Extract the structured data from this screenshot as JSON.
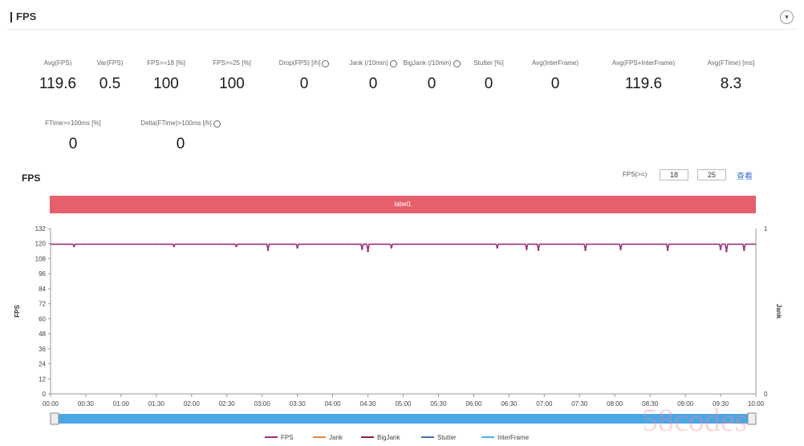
{
  "header": {
    "title": "FPS",
    "collapse_icon": "chevron-down-icon"
  },
  "metrics_row1": [
    {
      "label": "Avg(FPS)",
      "value": "119.6",
      "info": false
    },
    {
      "label": "Var(FPS)",
      "value": "0.5",
      "info": false
    },
    {
      "label": "FPS>=18 [%]",
      "value": "100",
      "info": false
    },
    {
      "label": "FPS>=25 [%]",
      "value": "100",
      "info": false
    },
    {
      "label": "Drop(FPS) [/h]",
      "value": "0",
      "info": true
    },
    {
      "label": "Jank (/10min)",
      "value": "0",
      "info": true
    },
    {
      "label": "BigJank (/10min)",
      "value": "0",
      "info": true
    },
    {
      "label": "Stutter [%]",
      "value": "0",
      "info": false
    },
    {
      "label": "Avg(InterFrame)",
      "value": "0",
      "info": false
    },
    {
      "label": "Avg(FPS+InterFrame)",
      "value": "119.6",
      "info": false
    },
    {
      "label": "Avg(FTime) [ms]",
      "value": "8.3",
      "info": false
    }
  ],
  "metrics_row2": [
    {
      "label": "FTime>=100ms [%]",
      "value": "0",
      "info": false
    },
    {
      "label": "Delta(FTime)>100ms [/h]",
      "value": "0",
      "info": true
    }
  ],
  "chart_controls": {
    "title": "FPS",
    "threshold_label": "FPS(>=)",
    "threshold_low": "18",
    "threshold_high": "25",
    "query_label": "查看"
  },
  "label_band": "label1",
  "watermark": "58codes",
  "colors": {
    "fps": "#a0307f",
    "jank": "#e8843a",
    "bigjank": "#8a2255",
    "stutter": "#4a6fa5",
    "interframe": "#47b8e0",
    "band": "#e5606c",
    "slider": "#4aa7e6"
  },
  "chart_data": {
    "type": "line",
    "title": "FPS",
    "ylabel": "FPS",
    "y2label": "Jank",
    "ylim": [
      0,
      132
    ],
    "y2lim": [
      0,
      1
    ],
    "y_ticks": [
      "0",
      "12",
      "24",
      "36",
      "48",
      "60",
      "72",
      "84",
      "96",
      "108",
      "120",
      "132"
    ],
    "y2_ticks": [
      "0",
      "1"
    ],
    "x_ticks": [
      "00:00",
      "00:30",
      "01:00",
      "01:30",
      "02:00",
      "02:30",
      "03:00",
      "03:30",
      "04:00",
      "04:30",
      "05:00",
      "05:30",
      "06:00",
      "06:30",
      "07:00",
      "07:30",
      "08:00",
      "08:30",
      "09:00",
      "09:30",
      "10:00"
    ],
    "x_range_seconds": [
      0,
      600
    ],
    "legend": [
      "FPS",
      "Jank",
      "BigJank",
      "Stutter",
      "InterFrame"
    ],
    "legend_position": "bottom",
    "series": [
      {
        "name": "FPS",
        "baseline": 119.6,
        "dips": [
          [
            20,
            118
          ],
          [
            105,
            118
          ],
          [
            158,
            118
          ],
          [
            185,
            115
          ],
          [
            210,
            117
          ],
          [
            265,
            116
          ],
          [
            270,
            114
          ],
          [
            290,
            117
          ],
          [
            380,
            117
          ],
          [
            405,
            116
          ],
          [
            415,
            115
          ],
          [
            455,
            115
          ],
          [
            485,
            116
          ],
          [
            525,
            115
          ],
          [
            570,
            116
          ],
          [
            575,
            114
          ],
          [
            590,
            115
          ]
        ]
      },
      {
        "name": "Jank",
        "values": []
      },
      {
        "name": "BigJank",
        "values": []
      },
      {
        "name": "Stutter",
        "values": []
      },
      {
        "name": "InterFrame",
        "values": []
      }
    ]
  }
}
